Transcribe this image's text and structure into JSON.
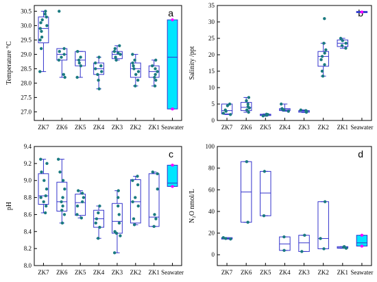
{
  "figure": {
    "box_color": "#3333cc",
    "point_color": "#1a7a80",
    "seawater_fill": "#00e5ff",
    "seawater_point_color": "#ff00ff",
    "box_width_ratio": 0.55
  },
  "chart_data": [
    {
      "id": "a",
      "type": "box",
      "panel_letter": "a",
      "ylabel": "Temperature °C",
      "ylim": [
        26.7,
        30.7
      ],
      "yticks": [
        27.0,
        27.5,
        28.0,
        28.5,
        29.0,
        29.5,
        30.0,
        30.5
      ],
      "ytick_labels": [
        "27.0",
        "27.5",
        "28.0",
        "28.5",
        "29.0",
        "29.5",
        "30.0",
        "30.5"
      ],
      "categories": [
        "ZK7",
        "ZK6",
        "ZK5",
        "ZK4",
        "ZK3",
        "ZK2",
        "ZK1",
        "Seawater"
      ],
      "boxes": [
        {
          "q1": 29.4,
          "median": 29.9,
          "q3": 30.3,
          "whisker_low": 28.4,
          "whisker_high": 30.5,
          "points": [
            28.4,
            29.2,
            29.5,
            29.6,
            29.8,
            29.9,
            30.0,
            30.1,
            30.2,
            30.3,
            30.4,
            30.5
          ]
        },
        {
          "q1": 28.8,
          "median": 29.0,
          "q3": 29.2,
          "whisker_low": 28.2,
          "whisker_high": 29.2,
          "outliers": [
            30.5
          ],
          "points": [
            28.2,
            28.3,
            28.8,
            28.9,
            29.0,
            29.1,
            29.2,
            30.5
          ]
        },
        {
          "q1": 28.6,
          "median": 28.8,
          "q3": 29.1,
          "whisker_low": 28.2,
          "whisker_high": 29.1,
          "points": [
            28.2,
            28.6,
            28.7,
            28.8,
            28.9,
            29.1
          ]
        },
        {
          "q1": 28.3,
          "median": 28.5,
          "q3": 28.7,
          "whisker_low": 27.8,
          "whisker_high": 28.9,
          "points": [
            27.8,
            28.1,
            28.3,
            28.4,
            28.5,
            28.6,
            28.7,
            28.9
          ]
        },
        {
          "q1": 28.85,
          "median": 29.0,
          "q3": 29.1,
          "whisker_low": 28.8,
          "whisker_high": 29.3,
          "points": [
            28.8,
            28.9,
            29.0,
            29.05,
            29.1,
            29.2,
            29.3
          ]
        },
        {
          "q1": 28.2,
          "median": 28.5,
          "q3": 28.7,
          "whisker_low": 27.9,
          "whisker_high": 29.0,
          "points": [
            27.9,
            28.1,
            28.3,
            28.4,
            28.5,
            28.6,
            28.7,
            28.8,
            29.0
          ]
        },
        {
          "q1": 28.2,
          "median": 28.4,
          "q3": 28.6,
          "whisker_low": 27.9,
          "whisker_high": 28.8,
          "points": [
            27.9,
            28.1,
            28.2,
            28.3,
            28.4,
            28.5,
            28.6,
            28.8
          ]
        },
        {
          "q1": 27.1,
          "median": 28.9,
          "q3": 30.2,
          "whisker_low": 27.1,
          "whisker_high": 30.2,
          "points": [
            27.1,
            30.2
          ],
          "highlight": true
        }
      ]
    },
    {
      "id": "b",
      "type": "box",
      "panel_letter": "b",
      "ylabel": "Salinity /ppt",
      "ylim": [
        0,
        35
      ],
      "yticks": [
        0,
        5,
        10,
        15,
        20,
        25,
        30,
        35
      ],
      "ytick_labels": [
        "0",
        "5",
        "10",
        "15",
        "20",
        "25",
        "30",
        "35"
      ],
      "categories": [
        "ZK7",
        "ZK6",
        "ZK5",
        "ZK4",
        "ZK3",
        "ZK2",
        "ZK1",
        "Seawater"
      ],
      "boxes": [
        {
          "q1": 2.0,
          "median": 3.0,
          "q3": 5.0,
          "whisker_low": 1.8,
          "whisker_high": 5.0,
          "points": [
            1.8,
            2.2,
            2.8,
            3.2,
            4.5,
            5.0
          ]
        },
        {
          "q1": 3.0,
          "median": 4.0,
          "q3": 5.5,
          "whisker_low": 2.5,
          "whisker_high": 7.0,
          "points": [
            2.5,
            3.2,
            3.8,
            4.2,
            5.0,
            6.0,
            7.0
          ]
        },
        {
          "q1": 1.5,
          "median": 1.7,
          "q3": 1.9,
          "whisker_low": 1.3,
          "whisker_high": 2.0,
          "points": [
            1.4,
            1.6,
            1.8,
            1.9
          ]
        },
        {
          "q1": 3.0,
          "median": 3.3,
          "q3": 3.6,
          "whisker_low": 2.8,
          "whisker_high": 5.0,
          "points": [
            2.8,
            3.2,
            3.4,
            3.6,
            5.0
          ]
        },
        {
          "q1": 2.5,
          "median": 2.8,
          "q3": 3.0,
          "whisker_low": 2.4,
          "whisker_high": 3.2,
          "points": [
            2.5,
            2.8,
            3.0,
            3.2
          ]
        },
        {
          "q1": 16.5,
          "median": 19.5,
          "q3": 21.0,
          "whisker_low": 13.5,
          "whisker_high": 23.5,
          "outliers": [
            31.0
          ],
          "points": [
            13.5,
            15.0,
            17.0,
            18.5,
            19.5,
            20.5,
            21.5,
            23.5,
            31.0
          ]
        },
        {
          "q1": 22.5,
          "median": 23.5,
          "q3": 24.5,
          "whisker_low": 22.0,
          "whisker_high": 25.0,
          "points": [
            22.0,
            22.8,
            23.5,
            24.3,
            25.0
          ]
        },
        {
          "q1": 32.8,
          "median": 33.0,
          "q3": 33.2,
          "whisker_low": 32.8,
          "whisker_high": 33.2,
          "points": [
            33.0
          ],
          "highlight": true
        }
      ]
    },
    {
      "id": "c",
      "type": "box",
      "panel_letter": "c",
      "ylabel": "pH",
      "ylim": [
        8.0,
        9.4
      ],
      "yticks": [
        8.0,
        8.2,
        8.4,
        8.6,
        8.8,
        9.0,
        9.2,
        9.4
      ],
      "ytick_labels": [
        "8.0",
        "8.2",
        "8.4",
        "8.6",
        "8.8",
        "9.0",
        "9.2",
        "9.4"
      ],
      "categories": [
        "ZK7",
        "ZK6",
        "ZK5",
        "ZK4",
        "ZK3",
        "ZK2",
        "ZK1",
        "Seawater"
      ],
      "boxes": [
        {
          "q1": 8.72,
          "median": 8.82,
          "q3": 9.08,
          "whisker_low": 8.62,
          "whisker_high": 9.25,
          "points": [
            8.62,
            8.7,
            8.75,
            8.8,
            8.82,
            8.9,
            9.0,
            9.1,
            9.2,
            9.25
          ]
        },
        {
          "q1": 8.64,
          "median": 8.75,
          "q3": 8.98,
          "whisker_low": 8.5,
          "whisker_high": 9.25,
          "points": [
            8.5,
            8.6,
            8.65,
            8.7,
            8.75,
            8.8,
            8.9,
            9.0,
            9.1,
            9.25
          ]
        },
        {
          "q1": 8.59,
          "median": 8.74,
          "q3": 8.84,
          "whisker_low": 8.56,
          "whisker_high": 8.88,
          "points": [
            8.56,
            8.6,
            8.7,
            8.75,
            8.8,
            8.85,
            8.88
          ]
        },
        {
          "q1": 8.45,
          "median": 8.55,
          "q3": 8.65,
          "whisker_low": 8.32,
          "whisker_high": 8.7,
          "points": [
            8.32,
            8.45,
            8.5,
            8.55,
            8.62,
            8.7
          ]
        },
        {
          "q1": 8.38,
          "median": 8.52,
          "q3": 8.73,
          "whisker_low": 8.15,
          "whisker_high": 8.88,
          "points": [
            8.15,
            8.35,
            8.38,
            8.4,
            8.5,
            8.6,
            8.7,
            8.8,
            8.88
          ]
        },
        {
          "q1": 8.5,
          "median": 8.75,
          "q3": 9.01,
          "whisker_low": 8.48,
          "whisker_high": 9.05,
          "points": [
            8.48,
            8.55,
            8.7,
            8.75,
            8.8,
            8.95,
            9.0,
            9.05
          ]
        },
        {
          "q1": 8.46,
          "median": 8.57,
          "q3": 9.08,
          "whisker_low": 8.46,
          "whisker_high": 9.1,
          "points": [
            8.46,
            8.55,
            8.6,
            8.9,
            9.08,
            9.1
          ]
        },
        {
          "q1": 8.93,
          "median": 8.97,
          "q3": 9.18,
          "whisker_low": 8.93,
          "whisker_high": 9.18,
          "points": [
            8.93,
            9.18
          ],
          "highlight": true
        }
      ]
    },
    {
      "id": "d",
      "type": "box",
      "panel_letter": "d",
      "ylabel": "N₂O nmol/L",
      "ylim": [
        -10,
        100
      ],
      "yticks": [
        0,
        20,
        40,
        60,
        80,
        100
      ],
      "ytick_labels": [
        "0",
        "20",
        "40",
        "60",
        "80",
        "100"
      ],
      "categories": [
        "ZK7",
        "ZK6",
        "ZK5",
        "ZK4",
        "ZK3",
        "ZK2",
        "ZK1",
        "Seawater"
      ],
      "boxes": [
        {
          "q1": 14.5,
          "median": 15.0,
          "q3": 15.8,
          "whisker_low": 14.5,
          "whisker_high": 15.8,
          "points": [
            14.5,
            15.0,
            15.8
          ]
        },
        {
          "q1": 30.0,
          "median": 58.0,
          "q3": 86.0,
          "whisker_low": 30.0,
          "whisker_high": 86.0,
          "points": [
            30.0,
            86.0
          ]
        },
        {
          "q1": 36.0,
          "median": 57.0,
          "q3": 77.0,
          "whisker_low": 36.0,
          "whisker_high": 77.0,
          "points": [
            36.0,
            77.0
          ]
        },
        {
          "q1": 4.0,
          "median": 10.0,
          "q3": 16.5,
          "whisker_low": 4.0,
          "whisker_high": 16.5,
          "points": [
            4.0,
            16.5
          ]
        },
        {
          "q1": 3.0,
          "median": 11.0,
          "q3": 18.0,
          "whisker_low": 3.0,
          "whisker_high": 18.0,
          "points": [
            3.0,
            18.0
          ]
        },
        {
          "q1": 5.5,
          "median": 15.0,
          "q3": 49.0,
          "whisker_low": 5.5,
          "whisker_high": 49.0,
          "points": [
            5.5,
            15.0,
            49.0
          ]
        },
        {
          "q1": 6.0,
          "median": 6.5,
          "q3": 7.5,
          "whisker_low": 6.0,
          "whisker_high": 7.5,
          "points": [
            6.0,
            7.0,
            7.5
          ]
        },
        {
          "q1": 8.0,
          "median": 11.0,
          "q3": 18.0,
          "whisker_low": 8.0,
          "whisker_high": 18.0,
          "points": [
            8.0,
            18.0
          ],
          "highlight": true
        }
      ]
    }
  ]
}
